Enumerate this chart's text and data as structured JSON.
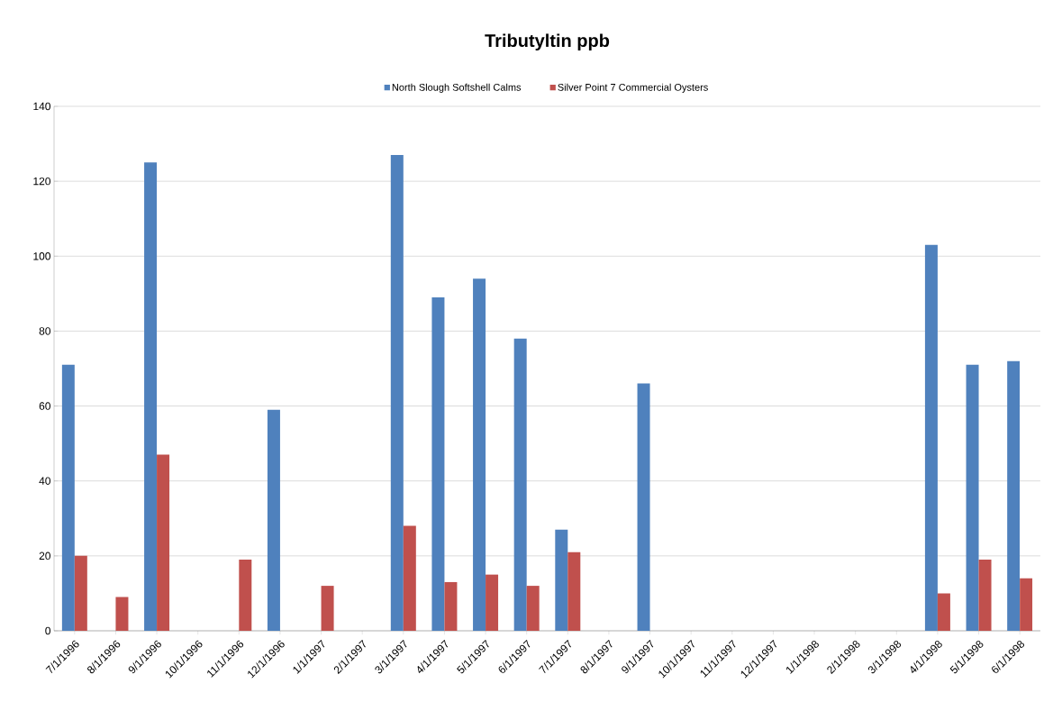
{
  "chart_data": {
    "type": "bar",
    "title": "Tributyltin ppb",
    "categories": [
      "7/1/1996",
      "8/1/1996",
      "9/1/1996",
      "10/1/1996",
      "11/1/1996",
      "12/1/1996",
      "1/1/1997",
      "2/1/1997",
      "3/1/1997",
      "4/1/1997",
      "5/1/1997",
      "6/1/1997",
      "7/1/1997",
      "8/1/1997",
      "9/1/1997",
      "10/1/1997",
      "11/1/1997",
      "12/1/1997",
      "1/1/1998",
      "2/1/1998",
      "3/1/1998",
      "4/1/1998",
      "5/1/1998",
      "6/1/1998"
    ],
    "series": [
      {
        "name": "North Slough Softshell Calms",
        "color": "#4f81bd",
        "values": [
          71,
          null,
          125,
          null,
          null,
          59,
          null,
          null,
          127,
          89,
          94,
          78,
          27,
          null,
          66,
          null,
          null,
          null,
          null,
          null,
          null,
          103,
          71,
          72
        ]
      },
      {
        "name": "Silver Point 7 Commercial Oysters",
        "color": "#c0504d",
        "values": [
          20,
          9,
          47,
          null,
          19,
          null,
          12,
          null,
          28,
          13,
          15,
          12,
          21,
          null,
          null,
          null,
          null,
          null,
          null,
          null,
          null,
          10,
          19,
          14
        ]
      }
    ],
    "ylim": [
      0,
      140
    ],
    "yticks": [
      0,
      20,
      40,
      60,
      80,
      100,
      120,
      140
    ],
    "grid": "y",
    "legend": "top"
  }
}
